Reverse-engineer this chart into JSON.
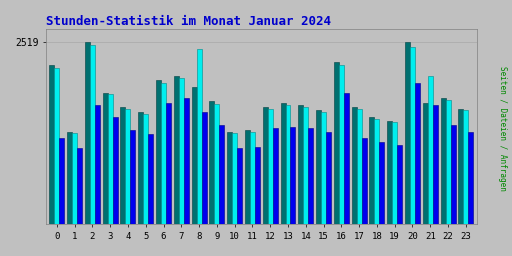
{
  "title": "Stunden-Statistik im Monat Januar 2024",
  "ylabel": "Seiten / Dateien / Anfragen",
  "xlabel_hours": [
    0,
    1,
    2,
    3,
    4,
    5,
    6,
    7,
    8,
    9,
    10,
    11,
    12,
    13,
    14,
    15,
    16,
    17,
    18,
    19,
    20,
    21,
    22,
    23
  ],
  "ytick_label": "2519",
  "colors": {
    "seiten": "#007070",
    "dateien": "#00EEEE",
    "anfragen": "#0000EE"
  },
  "background_color": "#C0C0C0",
  "title_color": "#0000CC",
  "ylabel_color": "#008800",
  "bar_width": 0.28,
  "seiten": [
    2200,
    1280,
    2519,
    1820,
    1620,
    1550,
    2000,
    2050,
    1900,
    1700,
    1280,
    1300,
    1620,
    1680,
    1650,
    1580,
    2250,
    1620,
    1480,
    1430,
    2519,
    1680,
    1750,
    1600
  ],
  "dateien": [
    2160,
    1260,
    2480,
    1800,
    1600,
    1530,
    1960,
    2020,
    2430,
    1660,
    1260,
    1280,
    1600,
    1650,
    1630,
    1560,
    2200,
    1600,
    1460,
    1410,
    2450,
    2050,
    1720,
    1580
  ],
  "anfragen": [
    1200,
    1050,
    1650,
    1480,
    1300,
    1250,
    1680,
    1750,
    1550,
    1380,
    1050,
    1070,
    1330,
    1350,
    1330,
    1280,
    1820,
    1200,
    1140,
    1100,
    1950,
    1650,
    1380,
    1280
  ]
}
